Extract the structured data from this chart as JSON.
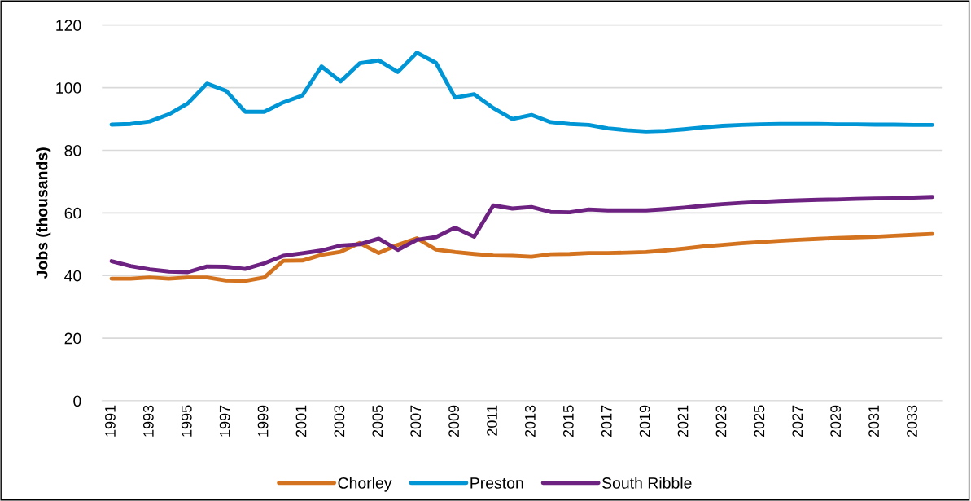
{
  "chart_data": {
    "type": "line",
    "ylabel": "Jobs (thousands)",
    "categories": [
      "1991",
      null,
      "1993",
      null,
      "1995",
      null,
      "1997",
      null,
      "1999",
      null,
      "2001",
      null,
      "2003",
      null,
      "2005",
      null,
      "2007",
      null,
      "2009",
      null,
      "2011",
      null,
      "2013",
      null,
      "2015",
      null,
      "2017",
      null,
      "2019",
      null,
      "2021",
      null,
      "2023",
      null,
      "2025",
      null,
      "2027",
      null,
      "2029",
      null,
      "2031",
      null,
      "2033",
      null
    ],
    "series": [
      {
        "name": "Chorley",
        "color": "#d4731f",
        "values": [
          39,
          39,
          39.4,
          39,
          39.4,
          39.4,
          38.4,
          38.3,
          39.4,
          44.7,
          44.8,
          46.6,
          47.6,
          50.4,
          47.2,
          49.8,
          51.9,
          48.3,
          47.5,
          46.9,
          46.4,
          46.3,
          46,
          46.8,
          46.9,
          47.2,
          47.2,
          47.3,
          47.5,
          48,
          48.6,
          49.3,
          49.8,
          50.3,
          50.7,
          51.1,
          51.4,
          51.7,
          52,
          52.2,
          52.4,
          52.7,
          53,
          53.3
        ]
      },
      {
        "name": "Preston",
        "color": "#0096d6",
        "values": [
          88.2,
          88.4,
          89.2,
          91.5,
          95,
          101.3,
          99,
          92.3,
          92.3,
          95.3,
          97.5,
          106.8,
          102,
          107.8,
          108.7,
          105,
          111.2,
          107.9,
          96.8,
          97.9,
          93.5,
          90,
          91.3,
          89,
          88.4,
          88.1,
          87,
          86.4,
          86,
          86.2,
          86.7,
          87.3,
          87.8,
          88.1,
          88.3,
          88.4,
          88.4,
          88.4,
          88.3,
          88.3,
          88.2,
          88.2,
          88.1,
          88.1
        ]
      },
      {
        "name": "South Ribble",
        "color": "#6d2180",
        "values": [
          44.6,
          43,
          42,
          41.3,
          41.1,
          42.9,
          42.8,
          42.1,
          43.9,
          46.3,
          47.1,
          48,
          49.6,
          50,
          51.8,
          48.2,
          51.4,
          52.3,
          55.3,
          52.4,
          62.4,
          61.4,
          61.9,
          60.3,
          60.2,
          61.1,
          60.8,
          60.8,
          60.8,
          61.2,
          61.7,
          62.3,
          62.8,
          63.2,
          63.5,
          63.8,
          64,
          64.2,
          64.3,
          64.5,
          64.6,
          64.7,
          64.9,
          65.1
        ]
      }
    ],
    "ylim": [
      0,
      120
    ],
    "yticks": [
      0,
      20,
      40,
      60,
      80,
      100,
      120
    ],
    "grid": "y",
    "legend": "bottom",
    "marker": "none",
    "line_style": "solid"
  }
}
